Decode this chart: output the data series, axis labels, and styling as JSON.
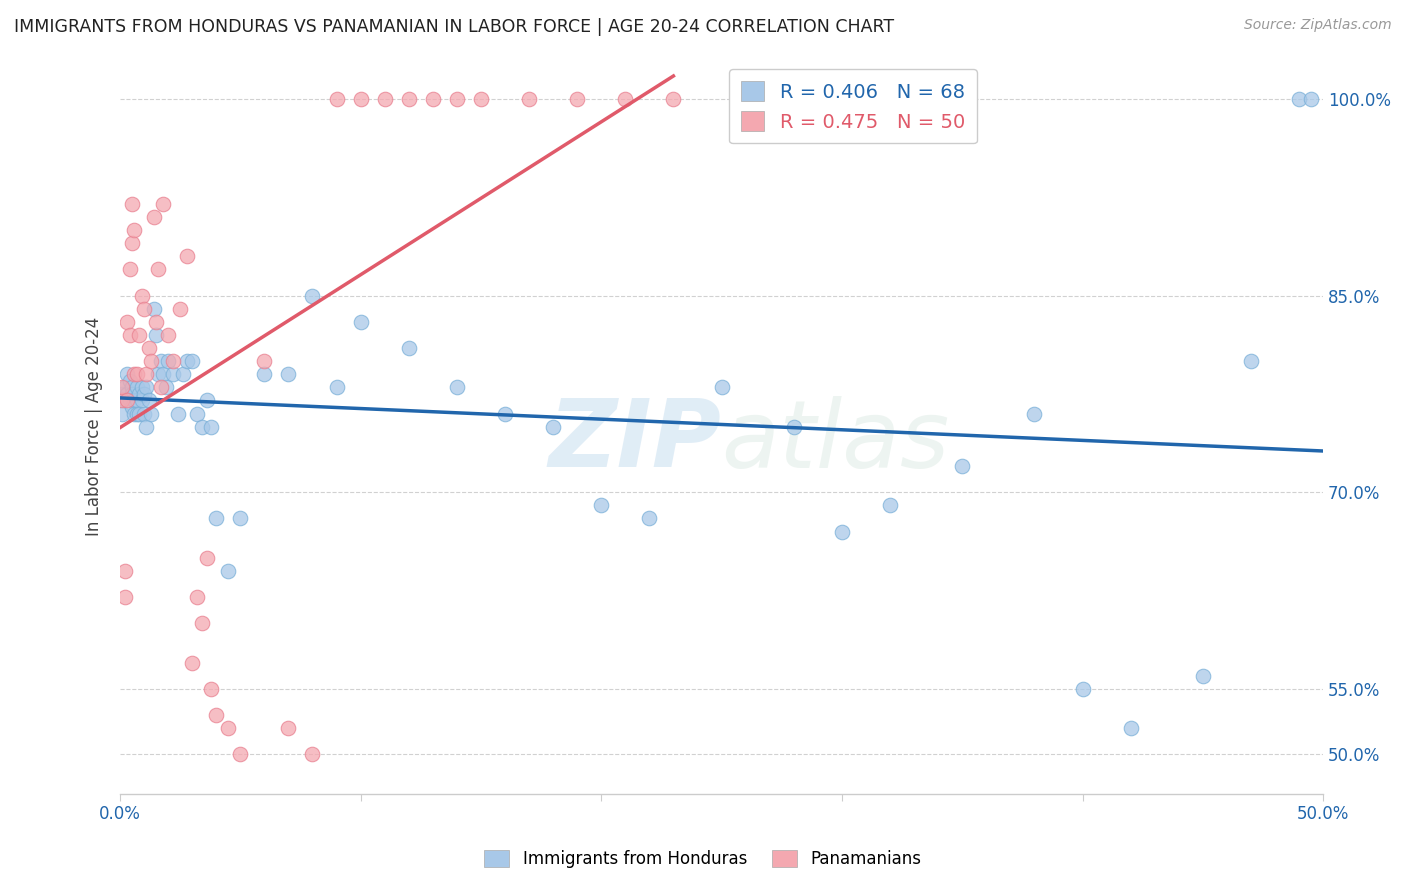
{
  "title": "IMMIGRANTS FROM HONDURAS VS PANAMANIAN IN LABOR FORCE | AGE 20-24 CORRELATION CHART",
  "source": "Source: ZipAtlas.com",
  "ylabel": "In Labor Force | Age 20-24",
  "xlim": [
    0.0,
    0.5
  ],
  "ylim": [
    0.47,
    1.03
  ],
  "xtick_positions": [
    0.0,
    0.1,
    0.2,
    0.3,
    0.4,
    0.5
  ],
  "xtick_labels": [
    "0.0%",
    "",
    "",
    "",
    "",
    "50.0%"
  ],
  "ytick_positions": [
    0.5,
    0.55,
    0.7,
    0.85,
    1.0
  ],
  "ytick_labels": [
    "50.0%",
    "55.0%",
    "70.0%",
    "85.0%",
    "100.0%"
  ],
  "legend_blue_r": "R = 0.406",
  "legend_blue_n": "N = 68",
  "legend_pink_r": "R = 0.475",
  "legend_pink_n": "N = 50",
  "blue_color": "#a8c8e8",
  "pink_color": "#f4a8b0",
  "line_blue_color": "#2166ac",
  "line_pink_color": "#e05a6a",
  "background": "#ffffff",
  "grid_color": "#cccccc",
  "watermark_zip": "ZIP",
  "watermark_atlas": "atlas",
  "blue_x": [
    0.001,
    0.001,
    0.002,
    0.002,
    0.003,
    0.003,
    0.004,
    0.004,
    0.005,
    0.005,
    0.005,
    0.006,
    0.006,
    0.007,
    0.007,
    0.007,
    0.008,
    0.008,
    0.009,
    0.009,
    0.01,
    0.01,
    0.011,
    0.011,
    0.012,
    0.013,
    0.014,
    0.015,
    0.016,
    0.017,
    0.018,
    0.019,
    0.02,
    0.022,
    0.024,
    0.026,
    0.028,
    0.03,
    0.032,
    0.034,
    0.036,
    0.038,
    0.04,
    0.045,
    0.05,
    0.06,
    0.07,
    0.08,
    0.09,
    0.1,
    0.12,
    0.14,
    0.16,
    0.18,
    0.2,
    0.22,
    0.25,
    0.28,
    0.3,
    0.32,
    0.35,
    0.38,
    0.4,
    0.42,
    0.45,
    0.47,
    0.49,
    0.495
  ],
  "blue_y": [
    0.775,
    0.76,
    0.78,
    0.77,
    0.79,
    0.775,
    0.77,
    0.785,
    0.78,
    0.775,
    0.765,
    0.77,
    0.76,
    0.78,
    0.77,
    0.76,
    0.775,
    0.76,
    0.78,
    0.77,
    0.775,
    0.76,
    0.78,
    0.75,
    0.77,
    0.76,
    0.84,
    0.82,
    0.79,
    0.8,
    0.79,
    0.78,
    0.8,
    0.79,
    0.76,
    0.79,
    0.8,
    0.8,
    0.76,
    0.75,
    0.77,
    0.75,
    0.68,
    0.64,
    0.68,
    0.79,
    0.79,
    0.85,
    0.78,
    0.83,
    0.81,
    0.78,
    0.76,
    0.75,
    0.69,
    0.68,
    0.78,
    0.75,
    0.67,
    0.69,
    0.72,
    0.76,
    0.55,
    0.52,
    0.56,
    0.8,
    1.0,
    1.0
  ],
  "pink_x": [
    0.001,
    0.001,
    0.002,
    0.002,
    0.003,
    0.003,
    0.004,
    0.004,
    0.005,
    0.005,
    0.006,
    0.006,
    0.007,
    0.008,
    0.009,
    0.01,
    0.011,
    0.012,
    0.013,
    0.014,
    0.015,
    0.016,
    0.017,
    0.018,
    0.02,
    0.022,
    0.025,
    0.028,
    0.03,
    0.032,
    0.034,
    0.036,
    0.038,
    0.04,
    0.045,
    0.05,
    0.06,
    0.07,
    0.08,
    0.09,
    0.1,
    0.11,
    0.12,
    0.13,
    0.14,
    0.15,
    0.17,
    0.19,
    0.21,
    0.23
  ],
  "pink_y": [
    0.77,
    0.78,
    0.62,
    0.64,
    0.77,
    0.83,
    0.82,
    0.87,
    0.89,
    0.92,
    0.9,
    0.79,
    0.79,
    0.82,
    0.85,
    0.84,
    0.79,
    0.81,
    0.8,
    0.91,
    0.83,
    0.87,
    0.78,
    0.92,
    0.82,
    0.8,
    0.84,
    0.88,
    0.57,
    0.62,
    0.6,
    0.65,
    0.55,
    0.53,
    0.52,
    0.5,
    0.8,
    0.52,
    0.5,
    1.0,
    1.0,
    1.0,
    1.0,
    1.0,
    1.0,
    1.0,
    1.0,
    1.0,
    1.0,
    1.0
  ]
}
